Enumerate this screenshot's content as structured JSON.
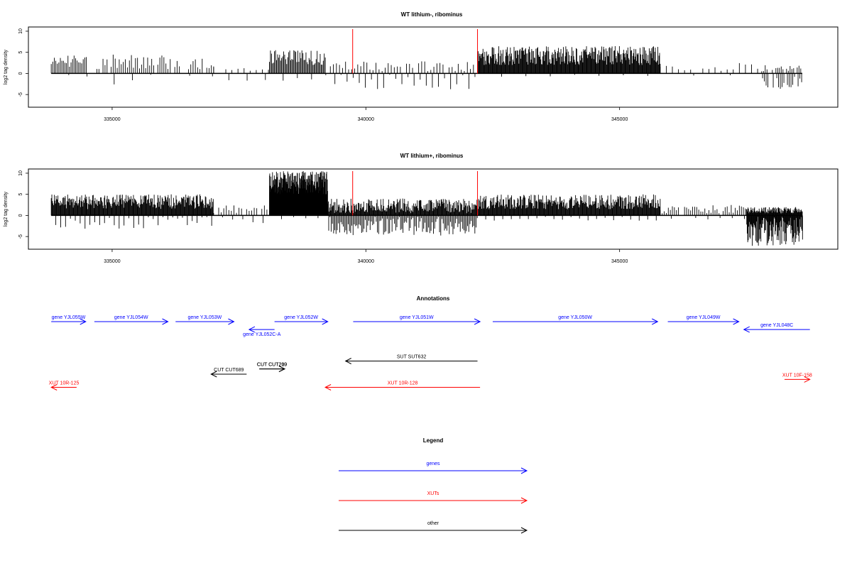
{
  "colors": {
    "signal": "#000000",
    "marker": "#ff0000",
    "gene": "#0000ff",
    "xut": "#ff0000",
    "other": "#000000",
    "frame": "#000000"
  },
  "chart_data": [
    {
      "type": "bar",
      "title": "WT lithium-, ribominus",
      "ylabel": "log2 tag density",
      "xlabel": "",
      "xlim": [
        333350,
        349300
      ],
      "ylim": [
        -8,
        11
      ],
      "x_ticks": [
        335000,
        340000,
        345000
      ],
      "x_tick_labels": [
        "335000",
        "340000",
        "345000"
      ],
      "y_ticks": [
        -5,
        0,
        5,
        10
      ],
      "y_tick_labels": [
        "-5",
        "0",
        "5",
        "10"
      ],
      "baseline_range": [
        333800,
        348600
      ],
      "markers": [
        339740,
        342200
      ],
      "segments": [
        {
          "start": 333800,
          "end": 334500,
          "pos_min": 1.5,
          "pos_max": 4.5,
          "neg_max": 0.5,
          "step": 30,
          "neg_every": 12
        },
        {
          "start": 334700,
          "end": 336100,
          "pos_min": 1.0,
          "pos_max": 4.5,
          "neg_max": 3.0,
          "step": 40,
          "neg_every": 9
        },
        {
          "start": 336100,
          "end": 337000,
          "pos_min": 1.0,
          "pos_max": 3.5,
          "neg_max": 1.0,
          "step": 45,
          "neg_every": 10
        },
        {
          "start": 337000,
          "end": 338100,
          "pos_min": 0.5,
          "pos_max": 1.5,
          "neg_max": 1.5,
          "step": 120,
          "neg_every": 3
        },
        {
          "start": 338100,
          "end": 339200,
          "pos_min": 2.0,
          "pos_max": 5.5,
          "neg_max": 2.0,
          "step": 20,
          "neg_every": 14
        },
        {
          "start": 339300,
          "end": 342200,
          "pos_min": 0.5,
          "pos_max": 3.0,
          "neg_max": 3.5,
          "step": 60,
          "neg_every": 2
        },
        {
          "start": 342200,
          "end": 345800,
          "pos_min": 2.0,
          "pos_max": 6.5,
          "neg_max": 0.5,
          "step": 12,
          "neg_every": 40
        },
        {
          "start": 345800,
          "end": 347800,
          "pos_min": 0.5,
          "pos_max": 2.5,
          "neg_max": 0.8,
          "step": 120,
          "neg_every": 6
        },
        {
          "start": 347800,
          "end": 348600,
          "pos_min": 0.5,
          "pos_max": 2.0,
          "neg_max": 3.5,
          "step": 35,
          "neg_every": 1
        }
      ]
    },
    {
      "type": "bar",
      "title": "WT lithium+, ribominus",
      "ylabel": "log2 tag density",
      "xlabel": "",
      "xlim": [
        333350,
        349300
      ],
      "ylim": [
        -8,
        11
      ],
      "x_ticks": [
        335000,
        340000,
        345000
      ],
      "x_tick_labels": [
        "335000",
        "340000",
        "345000"
      ],
      "y_ticks": [
        -5,
        0,
        5,
        10
      ],
      "y_tick_labels": [
        "-5",
        "0",
        "5",
        "10"
      ],
      "baseline_range": [
        333800,
        348600
      ],
      "markers": [
        339740,
        342200
      ],
      "segments": [
        {
          "start": 333800,
          "end": 337000,
          "pos_min": 1.5,
          "pos_max": 5.0,
          "neg_max": 3.0,
          "step": 12,
          "neg_every": 8
        },
        {
          "start": 337000,
          "end": 338100,
          "pos_min": 0.5,
          "pos_max": 2.5,
          "neg_max": 1.5,
          "step": 50,
          "neg_every": 4
        },
        {
          "start": 338100,
          "end": 339250,
          "pos_min": 5.0,
          "pos_max": 10.5,
          "neg_max": 1.0,
          "step": 6,
          "neg_every": 40
        },
        {
          "start": 339250,
          "end": 342200,
          "pos_min": 0.5,
          "pos_max": 4.0,
          "neg_max": 4.5,
          "step": 12,
          "neg_every": 2
        },
        {
          "start": 342200,
          "end": 345800,
          "pos_min": 1.5,
          "pos_max": 5.0,
          "neg_max": 1.0,
          "step": 12,
          "neg_every": 14
        },
        {
          "start": 345800,
          "end": 347500,
          "pos_min": 0.5,
          "pos_max": 2.5,
          "neg_max": 1.0,
          "step": 40,
          "neg_every": 6
        },
        {
          "start": 347500,
          "end": 348600,
          "pos_min": 0.5,
          "pos_max": 2.0,
          "neg_max": 7.0,
          "step": 10,
          "neg_every": 1
        }
      ]
    },
    {
      "type": "annotation_track",
      "title": "Annotations",
      "xlim": [
        333350,
        349300
      ],
      "features": [
        {
          "label": "gene YJL055W",
          "kind": "gene",
          "start": 333800,
          "end": 334480,
          "strand": "+",
          "row": 0,
          "label_side": "above"
        },
        {
          "label": "gene YJL054W",
          "kind": "gene",
          "start": 334650,
          "end": 336100,
          "strand": "+",
          "row": 0,
          "label_side": "above"
        },
        {
          "label": "gene YJL053W",
          "kind": "gene",
          "start": 336250,
          "end": 337400,
          "strand": "+",
          "row": 0,
          "label_side": "above"
        },
        {
          "label": "gene YJL052C-A",
          "kind": "gene",
          "start": 337700,
          "end": 338200,
          "strand": "-",
          "row": 0.3,
          "label_side": "below"
        },
        {
          "label": "gene YJL052W",
          "kind": "gene",
          "start": 338200,
          "end": 339250,
          "strand": "+",
          "row": 0,
          "label_side": "above"
        },
        {
          "label": "gene YJL051W",
          "kind": "gene",
          "start": 339750,
          "end": 342250,
          "strand": "+",
          "row": 0,
          "label_side": "above"
        },
        {
          "label": "gene YJL050W",
          "kind": "gene",
          "start": 342500,
          "end": 345750,
          "strand": "+",
          "row": 0,
          "label_side": "above"
        },
        {
          "label": "gene YJL049W",
          "kind": "gene",
          "start": 345950,
          "end": 347350,
          "strand": "+",
          "row": 0,
          "label_side": "above"
        },
        {
          "label": "gene YJL048C",
          "kind": "gene",
          "start": 347450,
          "end": 348750,
          "strand": "-",
          "row": 0.3,
          "label_side": "above"
        },
        {
          "label": "SUT SUT632",
          "kind": "other",
          "start": 339600,
          "end": 342200,
          "strand": "-",
          "row": 1.5,
          "label_side": "above"
        },
        {
          "label": "CUT CUT210",
          "kind": "other",
          "start": 337900,
          "end": 338400,
          "strand": "+",
          "row": 1.8,
          "label_side": "above"
        },
        {
          "label": "CUT CUT209",
          "kind": "other",
          "start": 337900,
          "end": 338400,
          "strand": "+",
          "row": 1.8,
          "label_side": "above"
        },
        {
          "label": "CUT CUT689",
          "kind": "other",
          "start": 336950,
          "end": 337650,
          "strand": "-",
          "row": 2.0,
          "label_side": "above"
        },
        {
          "label": "XUT 10R-125",
          "kind": "xut",
          "start": 333800,
          "end": 334300,
          "strand": "-",
          "row": 2.5,
          "label_side": "above"
        },
        {
          "label": "XUT 10R-128",
          "kind": "xut",
          "start": 339200,
          "end": 342250,
          "strand": "-",
          "row": 2.5,
          "label_side": "above"
        },
        {
          "label": "XUT 10F-158",
          "kind": "xut",
          "start": 348250,
          "end": 348750,
          "strand": "+",
          "row": 2.2,
          "label_side": "above"
        }
      ]
    },
    {
      "type": "legend",
      "title": "Legend",
      "entries": [
        {
          "label": "genes",
          "kind": "gene"
        },
        {
          "label": "XUTs",
          "kind": "xut"
        },
        {
          "label": "other",
          "kind": "other"
        }
      ]
    }
  ]
}
